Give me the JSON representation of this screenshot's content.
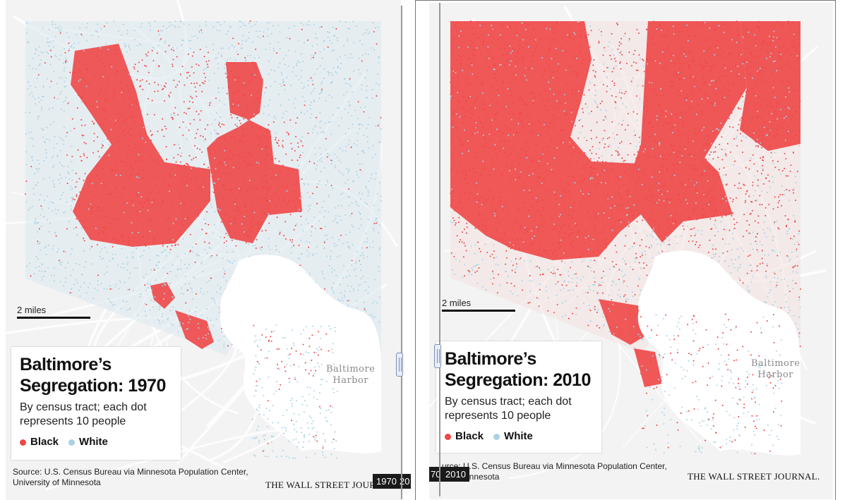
{
  "colors": {
    "black": "#ef4747",
    "white": "#a9d2e4",
    "background": "#f3f3f3",
    "roads": "#ffffff"
  },
  "maps": [
    {
      "year": "1970",
      "title_line1": "Baltimore’s",
      "title_line2": "Segregation: 1970",
      "subtitle_line1": "By census tract; each dot",
      "subtitle_line2": "represents 10 people",
      "legend_black": "Black",
      "legend_white": "White",
      "scale_label": "2 miles",
      "harbor_line1": "Baltimore",
      "harbor_line2": "Harbor",
      "source_line1": "Source: U.S. Census Bureau via Minnesota Population Center,",
      "source_line2": "University of Minnesota",
      "publisher": "THE WALL STREET JOUR",
      "tab_current": "1970",
      "tab_next": "20"
    },
    {
      "year": "2010",
      "title_line1": "Baltimore’s",
      "title_line2": "Segregation: 2010",
      "subtitle_line1": "By census tract; each dot",
      "subtitle_line2": "represents 10 people",
      "legend_black": "Black",
      "legend_white": "White",
      "scale_label": "2 miles",
      "harbor_line1": "Baltimore",
      "harbor_line2": "Harbor",
      "source_line1": "urce: U.S. Census Bureau via Minnesota Population Center,",
      "source_line2": "ty of Minnesota",
      "publisher": "THE WALL STREET JOURNAL.",
      "tab_prev": "70",
      "tab_current": "2010"
    }
  ]
}
